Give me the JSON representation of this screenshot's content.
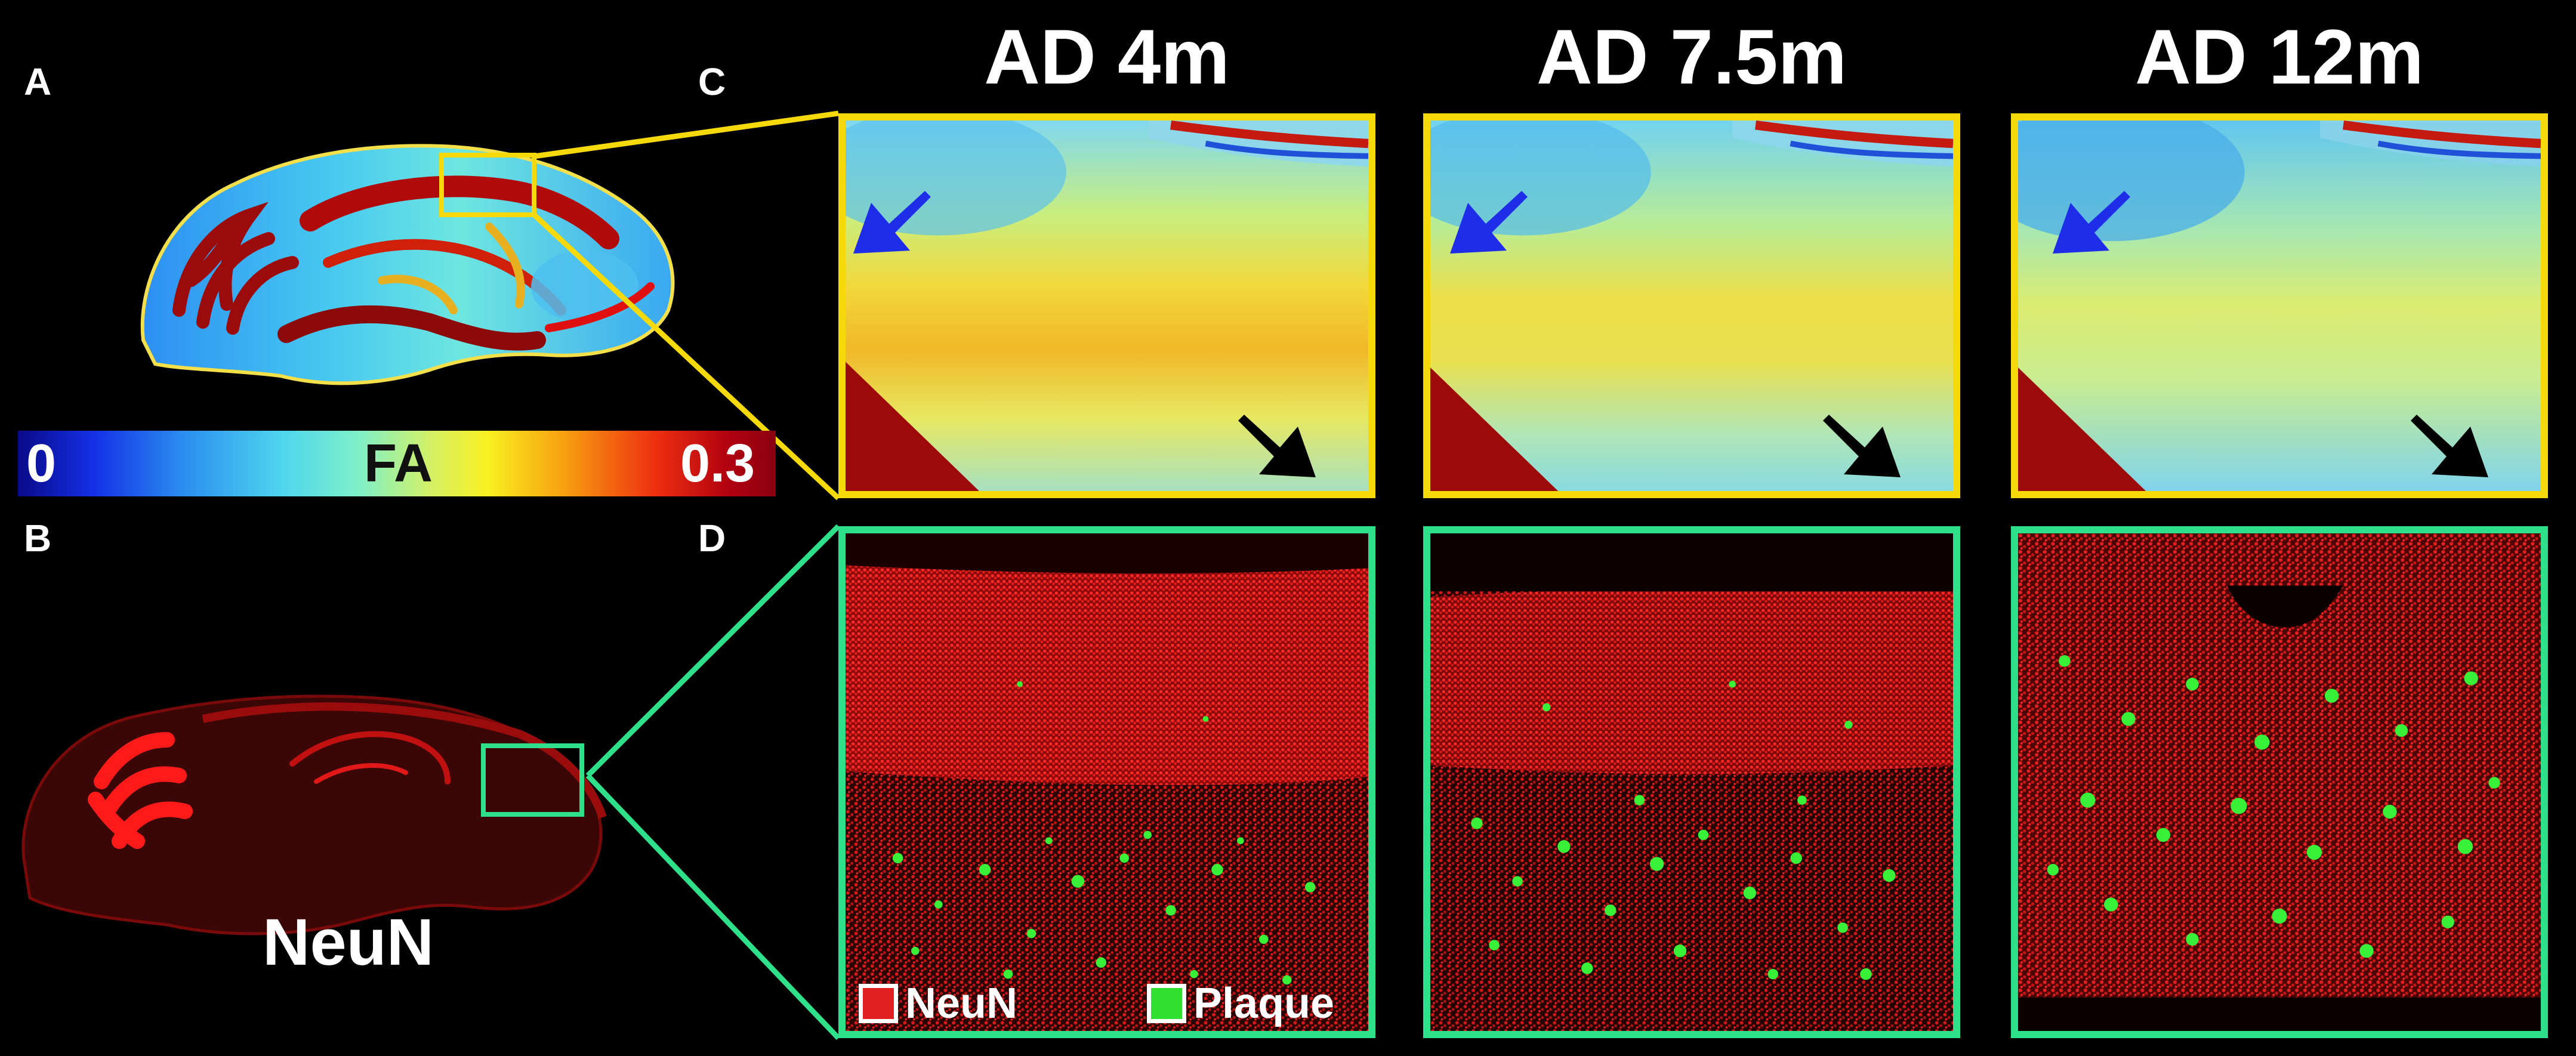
{
  "panels": {
    "a": "A",
    "b": "B",
    "c": "C",
    "d": "D"
  },
  "columns": [
    {
      "title": "AD 4m"
    },
    {
      "title": "AD 7.5m"
    },
    {
      "title": "AD 12m"
    }
  ],
  "colorbar": {
    "min_label": "0",
    "mid_label": "FA",
    "max_label": "0.3",
    "min_value": 0,
    "max_value": 0.3
  },
  "stain_label": "NeuN",
  "legend": {
    "neun_label": "NeuN",
    "plaque_label": "Plaque",
    "neun_color": "#e02020",
    "plaque_color": "#30e030"
  },
  "colors": {
    "fa_frame": "#f5d90a",
    "histology_frame": "#2fe08a",
    "arrow_blue": "#1e2ee8",
    "arrow_black": "#000000"
  }
}
